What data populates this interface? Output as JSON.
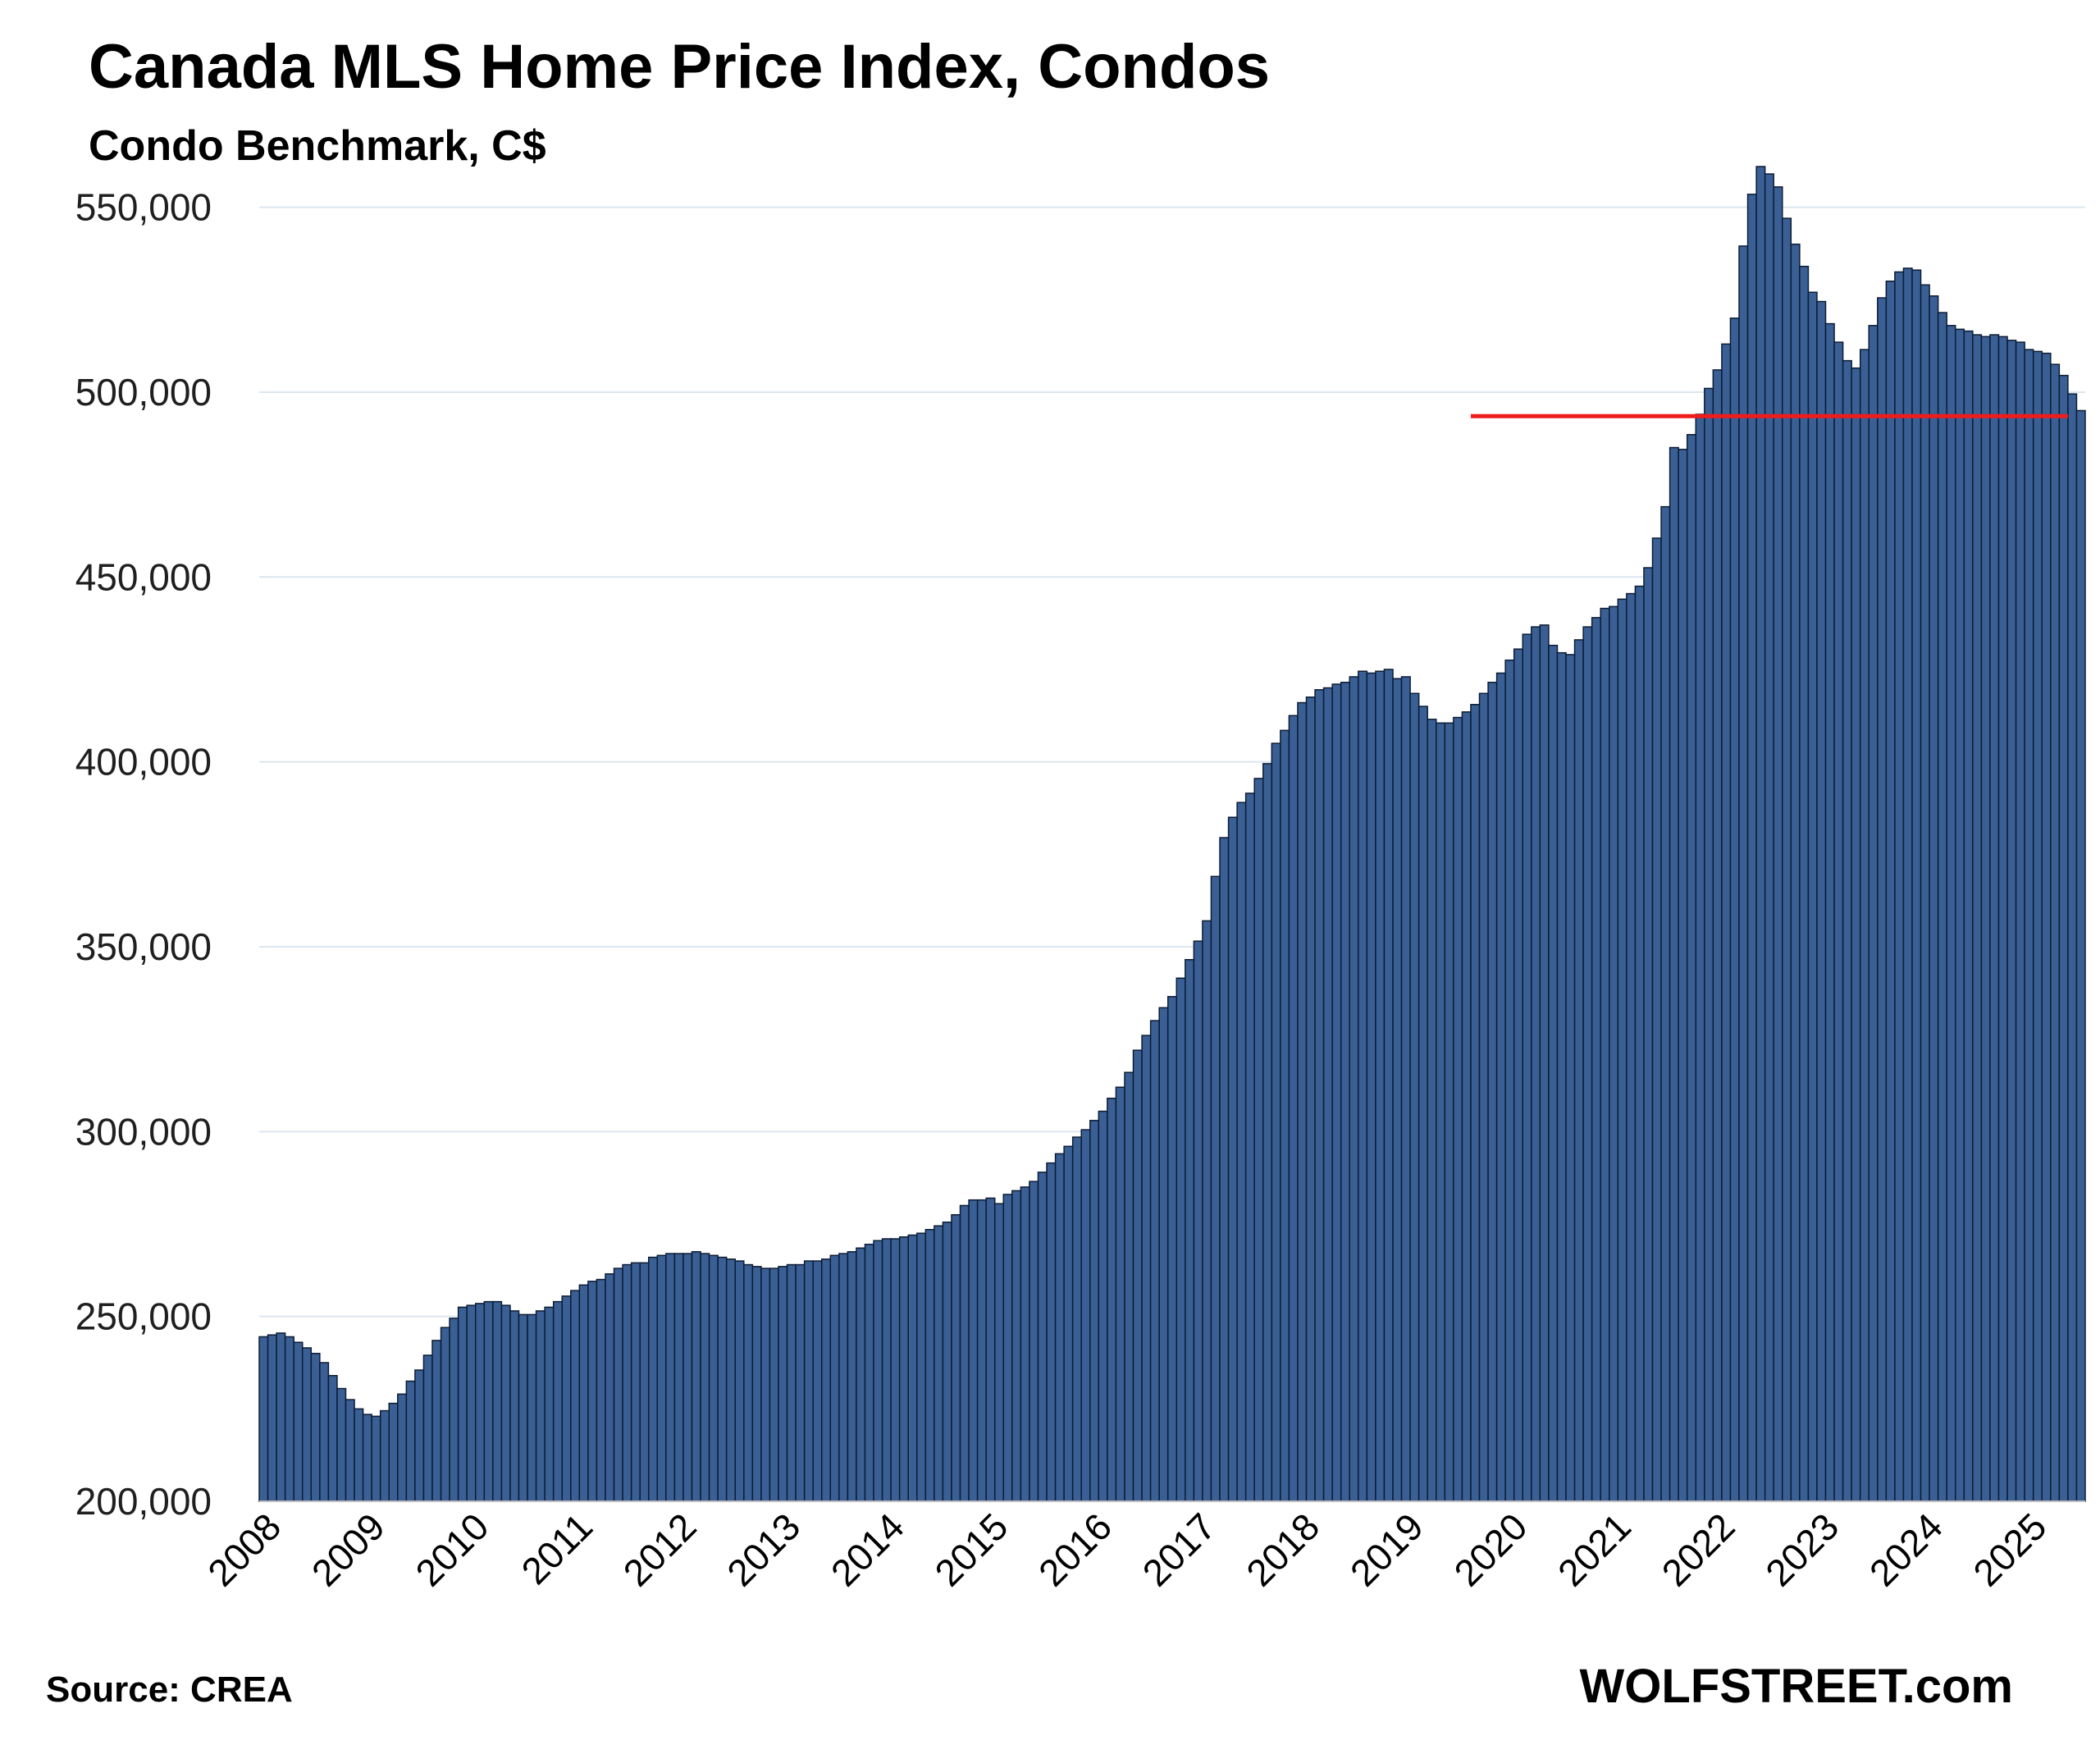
{
  "header": {
    "title": "Canada MLS Home Price Index, Condos",
    "subtitle": "Condo Benchmark, C$"
  },
  "footer": {
    "source": "Source: CREA",
    "brand": "WOLFSTREET.com"
  },
  "colors": {
    "bar_fill": "#3a5f95",
    "bar_stroke": "#0d1c33",
    "reference_line": "#ee1c1c",
    "grid": "#dce6ef"
  },
  "chart_data": {
    "type": "bar",
    "title": "Canada MLS Home Price Index, Condos",
    "subtitle": "Condo Benchmark, C$",
    "xlabel": "",
    "ylabel": "",
    "ylim": [
      200000,
      565000
    ],
    "yticks": [
      200000,
      250000,
      300000,
      350000,
      400000,
      450000,
      500000,
      550000
    ],
    "ytick_labels": [
      "200,000",
      "250,000",
      "300,000",
      "350,000",
      "400,000",
      "450,000",
      "500,000",
      "550,000"
    ],
    "xtick_labels": [
      "2008",
      "2009",
      "2010",
      "2011",
      "2012",
      "2013",
      "2014",
      "2015",
      "2016",
      "2017",
      "2018",
      "2019",
      "2020",
      "2021",
      "2022",
      "2023",
      "2024",
      "2025"
    ],
    "grid": true,
    "frequency": "monthly",
    "start": "2008-01",
    "reference_line": {
      "value": 493500,
      "from": "2019-09",
      "to": "2025-05"
    },
    "values": [
      244500,
      245000,
      245500,
      244500,
      243000,
      241500,
      240000,
      237500,
      234000,
      230500,
      227500,
      225000,
      223500,
      223000,
      224500,
      226500,
      229000,
      232500,
      235500,
      239500,
      243500,
      247000,
      249500,
      252500,
      253000,
      253500,
      254000,
      254000,
      253000,
      251500,
      250500,
      250500,
      251500,
      252500,
      254000,
      255500,
      257000,
      258500,
      259500,
      260000,
      261500,
      263000,
      264000,
      264500,
      264500,
      266000,
      266500,
      267000,
      267000,
      267000,
      267500,
      267000,
      266500,
      266000,
      265500,
      265000,
      264000,
      263500,
      263000,
      263000,
      263500,
      264000,
      264000,
      265000,
      265000,
      265500,
      266500,
      267000,
      267500,
      268500,
      269500,
      270500,
      271000,
      271000,
      271500,
      272000,
      272500,
      273500,
      274500,
      275500,
      277500,
      280000,
      281500,
      281500,
      282000,
      280500,
      283000,
      284000,
      285000,
      286500,
      289000,
      291500,
      294000,
      296000,
      298500,
      300500,
      303000,
      305500,
      309000,
      312000,
      316000,
      322000,
      326000,
      330000,
      333500,
      336500,
      341500,
      346500,
      351500,
      357000,
      369000,
      379500,
      385000,
      389000,
      391500,
      395500,
      399500,
      405000,
      408500,
      412500,
      416000,
      417500,
      419500,
      420000,
      421000,
      421500,
      423000,
      424500,
      424000,
      424500,
      425000,
      422500,
      423000,
      418500,
      415000,
      411500,
      410500,
      410500,
      412000,
      413500,
      415500,
      418500,
      421500,
      424000,
      427500,
      430500,
      434500,
      436500,
      437000,
      431500,
      429500,
      429000,
      433000,
      436500,
      439000,
      441500,
      442000,
      444000,
      445500,
      447500,
      452500,
      460500,
      469000,
      485000,
      484500,
      488500,
      494000,
      501000,
      506000,
      513000,
      520000,
      539500,
      553500,
      561000,
      559000,
      555500,
      547000,
      540000,
      534000,
      527000,
      524500,
      518500,
      513500,
      508500,
      506500,
      511500,
      518000,
      525500,
      530000,
      532500,
      533500,
      533000,
      529000,
      526000,
      521500,
      518000,
      517000,
      516500,
      515500,
      515000,
      515500,
      515000,
      514000,
      513500,
      511500,
      511000,
      510500,
      507500,
      504500,
      499500,
      495000
    ]
  }
}
